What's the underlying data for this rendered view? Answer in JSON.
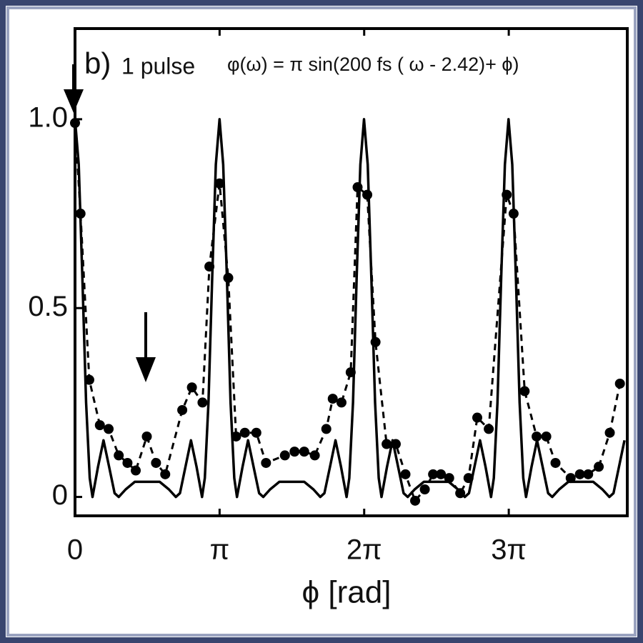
{
  "chart_data": {
    "type": "line",
    "annotations": [
      "b)",
      "1 pulse",
      "φ(ω) = π sin(200 fs ( ω - 2.42)+ ϕ)"
    ],
    "x_label": "ϕ [rad]",
    "xlim": [
      0,
      12.0
    ],
    "ylim": [
      -0.05,
      1.24
    ],
    "xticks": [
      0,
      {
        "value": 3.1416,
        "label": "π"
      },
      {
        "value": 6.2832,
        "label": "2π"
      },
      {
        "value": 9.4248,
        "label": "3π"
      }
    ],
    "yticks": [
      0,
      0.5,
      {
        "value": 1,
        "label": "1.0"
      }
    ],
    "series": [
      {
        "style": "solid",
        "color": "#000000",
        "x": [
          0,
          0.08,
          0.16,
          0.24,
          0.32,
          0.38,
          0.5,
          0.62,
          0.74,
          0.86,
          0.95,
          1.1,
          1.3,
          1.57,
          1.84,
          2.04,
          2.19,
          2.28,
          2.4,
          2.52,
          2.64,
          2.76,
          2.82,
          2.9,
          2.98,
          3.06,
          3.14,
          3.22,
          3.3,
          3.38,
          3.46,
          3.52,
          3.64,
          3.76,
          3.88,
          4.0,
          4.09,
          4.24,
          4.44,
          4.71,
          4.98,
          5.18,
          5.33,
          5.42,
          5.54,
          5.66,
          5.78,
          5.9,
          5.96,
          6.04,
          6.12,
          6.2,
          6.28,
          6.36,
          6.44,
          6.52,
          6.6,
          6.66,
          6.78,
          6.9,
          7.02,
          7.14,
          7.23,
          7.38,
          7.58,
          7.85,
          8.12,
          8.32,
          8.47,
          8.56,
          8.68,
          8.8,
          8.92,
          9.04,
          9.1,
          9.18,
          9.26,
          9.34,
          9.42,
          9.5,
          9.58,
          9.66,
          9.74,
          9.8,
          9.92,
          10.04,
          10.16,
          10.28,
          10.37,
          10.52,
          10.72,
          10.99,
          11.26,
          11.46,
          11.61,
          11.7,
          11.82,
          11.94
        ],
        "values": [
          1.0,
          0.88,
          0.58,
          0.25,
          0.05,
          0,
          0.08,
          0.15,
          0.08,
          0.01,
          0,
          0.02,
          0.04,
          0.04,
          0.04,
          0.02,
          0,
          0.01,
          0.08,
          0.15,
          0.08,
          0,
          0.05,
          0.25,
          0.58,
          0.88,
          1.0,
          0.88,
          0.58,
          0.25,
          0.05,
          0,
          0.08,
          0.15,
          0.08,
          0.01,
          0,
          0.02,
          0.04,
          0.04,
          0.04,
          0.02,
          0,
          0.01,
          0.08,
          0.15,
          0.08,
          0,
          0.05,
          0.25,
          0.58,
          0.88,
          1.0,
          0.88,
          0.58,
          0.25,
          0.05,
          0,
          0.08,
          0.15,
          0.08,
          0.01,
          0,
          0.02,
          0.04,
          0.04,
          0.04,
          0.02,
          0,
          0.01,
          0.08,
          0.15,
          0.08,
          0,
          0.05,
          0.25,
          0.58,
          0.88,
          1.0,
          0.88,
          0.58,
          0.25,
          0.05,
          0,
          0.08,
          0.15,
          0.08,
          0.01,
          0,
          0.02,
          0.04,
          0.04,
          0.04,
          0.02,
          0,
          0.01,
          0.08,
          0.15
        ]
      },
      {
        "style": "dashed",
        "markers": true,
        "color": "#000000",
        "x": [
          0,
          0.12,
          0.31,
          0.54,
          0.73,
          0.95,
          1.14,
          1.32,
          1.56,
          1.76,
          1.96,
          2.33,
          2.54,
          2.77,
          2.92,
          3.14,
          3.33,
          3.5,
          3.69,
          3.94,
          4.15,
          4.56,
          4.77,
          4.98,
          5.21,
          5.46,
          5.6,
          5.79,
          5.99,
          6.14,
          6.35,
          6.53,
          6.77,
          6.97,
          7.18,
          7.39,
          7.6,
          7.78,
          7.95,
          8.13,
          8.37,
          8.55,
          8.74,
          8.99,
          9.38,
          9.53,
          9.77,
          10.03,
          10.24,
          10.44,
          10.77,
          10.97,
          11.15,
          11.38,
          11.62,
          11.84
        ],
        "values": [
          0.99,
          0.75,
          0.31,
          0.19,
          0.18,
          0.11,
          0.09,
          0.07,
          0.16,
          0.09,
          0.06,
          0.23,
          0.29,
          0.25,
          0.61,
          0.83,
          0.58,
          0.16,
          0.17,
          0.17,
          0.09,
          0.11,
          0.12,
          0.12,
          0.11,
          0.18,
          0.26,
          0.25,
          0.33,
          0.82,
          0.8,
          0.41,
          0.14,
          0.14,
          0.06,
          -0.01,
          0.02,
          0.06,
          0.06,
          0.05,
          0.01,
          0.05,
          0.21,
          0.18,
          0.8,
          0.75,
          0.28,
          0.16,
          0.16,
          0.09,
          0.05,
          0.06,
          0.06,
          0.08,
          0.17,
          0.3
        ]
      }
    ]
  }
}
